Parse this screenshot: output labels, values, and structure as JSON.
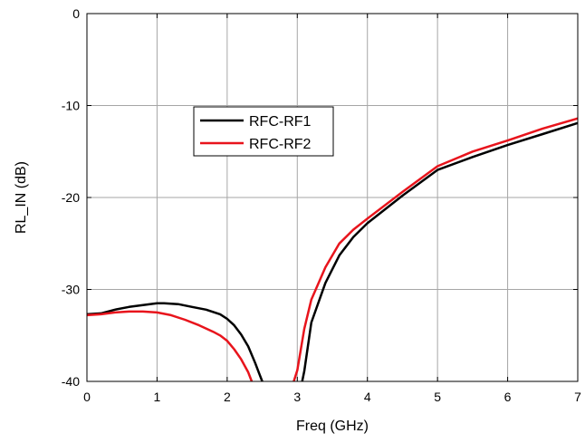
{
  "chart_data": {
    "type": "line",
    "title": "",
    "xlabel": "Freq (GHz)",
    "ylabel": "RL_IN (dB)",
    "xlim": [
      0,
      7
    ],
    "ylim": [
      -40,
      0
    ],
    "xticks": [
      0,
      1,
      2,
      3,
      4,
      5,
      6,
      7
    ],
    "yticks": [
      -40,
      -30,
      -20,
      -10,
      0
    ],
    "xtick_labels": [
      "0",
      "1",
      "2",
      "3",
      "4",
      "5",
      "6",
      "7"
    ],
    "ytick_labels": [
      "-40",
      "-30",
      "-20",
      "-10",
      "0"
    ],
    "grid": true,
    "legend_position": "upper-middle",
    "series": [
      {
        "name": "RFC-RF1",
        "color": "#000000",
        "x": [
          0,
          0.2,
          0.4,
          0.6,
          0.8,
          1.0,
          1.1,
          1.3,
          1.5,
          1.7,
          1.9,
          2.0,
          2.1,
          2.2,
          2.3,
          2.4,
          2.45,
          2.5,
          3.07,
          3.1,
          3.2,
          3.4,
          3.6,
          3.8,
          4.0,
          4.5,
          5.0,
          5.5,
          6.0,
          6.5,
          7.0
        ],
        "y": [
          -32.7,
          -32.6,
          -32.2,
          -31.9,
          -31.7,
          -31.5,
          -31.5,
          -31.6,
          -31.9,
          -32.2,
          -32.7,
          -33.2,
          -33.9,
          -34.9,
          -36.2,
          -38.0,
          -39.0,
          -40.0,
          -40.0,
          -38.9,
          -33.6,
          -29.3,
          -26.3,
          -24.3,
          -22.8,
          -19.8,
          -17.0,
          -15.6,
          -14.3,
          -13.1,
          -11.9
        ]
      },
      {
        "name": "RFC-RF2",
        "color": "#e8141c",
        "x": [
          0,
          0.2,
          0.4,
          0.6,
          0.8,
          1.0,
          1.2,
          1.4,
          1.6,
          1.8,
          1.9,
          2.0,
          2.1,
          2.2,
          2.3,
          2.35,
          2.95,
          3.0,
          3.1,
          3.2,
          3.4,
          3.6,
          3.8,
          4.0,
          4.5,
          5.0,
          5.5,
          6.0,
          6.5,
          7.0
        ],
        "y": [
          -32.8,
          -32.7,
          -32.5,
          -32.4,
          -32.4,
          -32.5,
          -32.8,
          -33.3,
          -33.9,
          -34.6,
          -35.0,
          -35.6,
          -36.5,
          -37.6,
          -39.0,
          -40.0,
          -40.0,
          -38.8,
          -34.3,
          -31.1,
          -27.6,
          -25.0,
          -23.5,
          -22.3,
          -19.4,
          -16.6,
          -15.0,
          -13.8,
          -12.5,
          -11.4
        ]
      }
    ]
  }
}
